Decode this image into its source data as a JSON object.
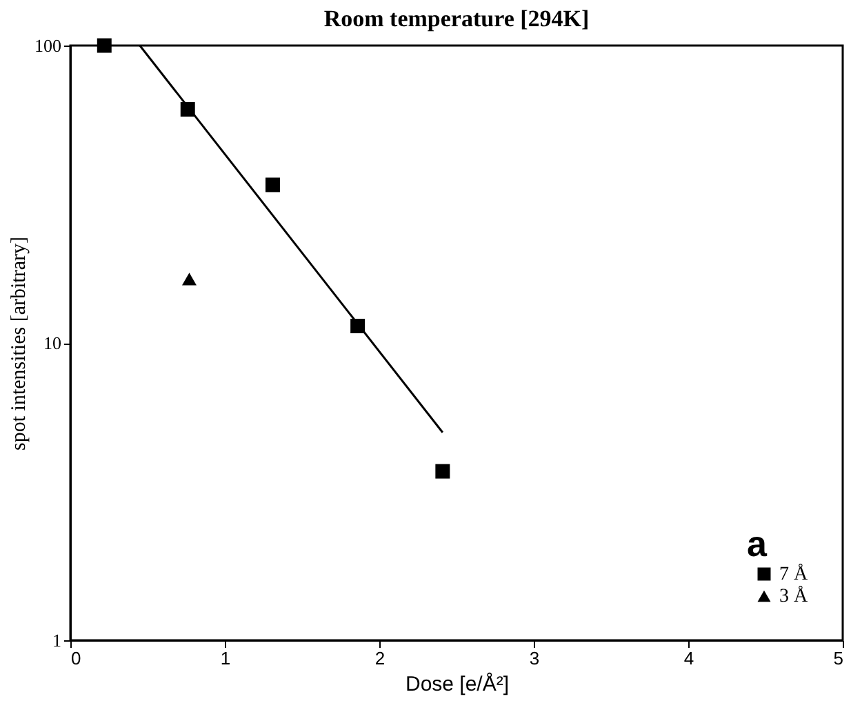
{
  "chart_data": {
    "type": "scatter",
    "title": "Room temperature [294K]",
    "xlabel": "Dose [e/Å²]",
    "ylabel": "spot intensities [arbitrary]",
    "log": "y",
    "xlim": [
      0,
      5
    ],
    "xticks": [
      0,
      1,
      2,
      3,
      4,
      5
    ],
    "ylim": [
      1,
      100
    ],
    "yticks": [
      1,
      10,
      100
    ],
    "grid": false,
    "legend": "bottom right",
    "annotations": [
      "a"
    ],
    "series": [
      {
        "type": "line",
        "color": "#000000",
        "x": [
          0.45,
          2.41
        ],
        "values": [
          100,
          5.0
        ],
        "marker": "none",
        "line_style": "solid"
      },
      {
        "name": "7 Å",
        "color": "#000000",
        "marker": "square",
        "x": [
          0.22,
          0.76,
          1.31,
          1.86,
          2.41
        ],
        "values": [
          100,
          61,
          34,
          11.4,
          3.7
        ]
      },
      {
        "name": "3 Å",
        "color": "#000000",
        "marker": "triangle",
        "x": [
          0.77
        ],
        "values": [
          16.4
        ]
      }
    ]
  }
}
